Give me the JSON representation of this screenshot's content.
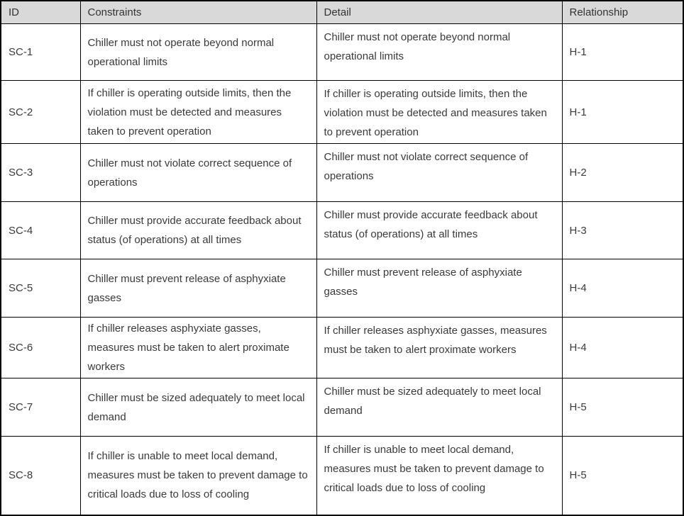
{
  "colors": {
    "header_bg": "#d9d9d9",
    "border": "#000000",
    "text": "#3a3a3a"
  },
  "table": {
    "headers": [
      "ID",
      "Constraints",
      "Detail",
      "Relationship"
    ],
    "rows": [
      {
        "id": "SC-1",
        "constraints": "Chiller must not operate beyond normal operational limits",
        "detail": "Chiller must not operate beyond normal operational limits",
        "relationship": "H-1"
      },
      {
        "id": "SC-2",
        "constraints": "If chiller is operating outside limits, then the violation must be detected and measures taken to prevent operation",
        "detail": "If chiller is operating outside limits, then the violation must be detected and measures taken to prevent operation",
        "relationship": "H-1"
      },
      {
        "id": "SC-3",
        "constraints": "Chiller must not violate correct sequence of operations",
        "detail": "Chiller must not violate correct sequence of operations",
        "relationship": "H-2"
      },
      {
        "id": "SC-4",
        "constraints": "Chiller must provide accurate feedback about status (of operations) at all times",
        "detail": "Chiller must provide accurate feedback about status (of operations) at all times",
        "relationship": "H-3"
      },
      {
        "id": "SC-5",
        "constraints": "Chiller must prevent release of asphyxiate gasses",
        "detail": "Chiller must prevent release of asphyxiate gasses",
        "relationship": "H-4"
      },
      {
        "id": "SC-6",
        "constraints": "If chiller releases asphyxiate gasses, measures must be taken to alert proximate workers",
        "detail": "If chiller releases asphyxiate gasses, measures must be taken to alert proximate workers",
        "relationship": "H-4"
      },
      {
        "id": "SC-7",
        "constraints": "Chiller must be sized adequately to meet local demand",
        "detail": "Chiller must be sized adequately to meet local demand",
        "relationship": "H-5"
      },
      {
        "id": "SC-8",
        "constraints": "If chiller is unable to meet local demand, measures must be taken to prevent damage to critical loads due to loss of cooling",
        "detail": "If chiller is unable to meet local demand, measures must be taken to prevent damage to critical loads due to loss of cooling",
        "relationship": "H-5"
      }
    ]
  }
}
